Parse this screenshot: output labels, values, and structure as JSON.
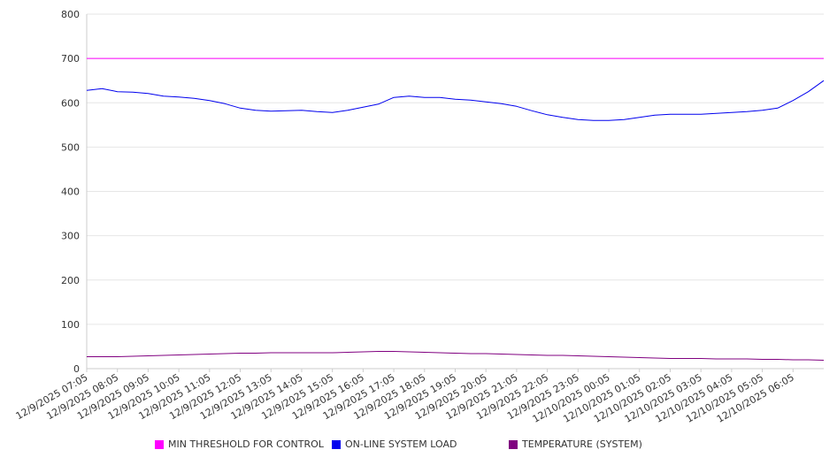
{
  "chart_data": {
    "type": "line",
    "ylim": [
      0,
      800
    ],
    "yticks": [
      0,
      100,
      200,
      300,
      400,
      500,
      600,
      700,
      800
    ],
    "grid": true,
    "legend_position": "bottom",
    "xticks": [
      "12/9/2025 07:05",
      "12/9/2025 08:05",
      "12/9/2025 09:05",
      "12/9/2025 10:05",
      "12/9/2025 11:05",
      "12/9/2025 12:05",
      "12/9/2025 13:05",
      "12/9/2025 14:05",
      "12/9/2025 15:05",
      "12/9/2025 16:05",
      "12/9/2025 17:05",
      "12/9/2025 18:05",
      "12/9/2025 19:05",
      "12/9/2025 20:05",
      "12/9/2025 21:05",
      "12/9/2025 22:05",
      "12/9/2025 23:05",
      "12/10/2025 00:05",
      "12/10/2025 01:05",
      "12/10/2025 02:05",
      "12/10/2025 03:05",
      "12/10/2025 04:05",
      "12/10/2025 05:05",
      "12/10/2025 06:05"
    ],
    "x": [
      "12/9/2025 07:05",
      "12/9/2025 07:35",
      "12/9/2025 08:05",
      "12/9/2025 08:35",
      "12/9/2025 09:05",
      "12/9/2025 09:35",
      "12/9/2025 10:05",
      "12/9/2025 10:35",
      "12/9/2025 11:05",
      "12/9/2025 11:35",
      "12/9/2025 12:05",
      "12/9/2025 12:35",
      "12/9/2025 13:05",
      "12/9/2025 13:35",
      "12/9/2025 14:05",
      "12/9/2025 14:35",
      "12/9/2025 15:05",
      "12/9/2025 15:35",
      "12/9/2025 16:05",
      "12/9/2025 16:35",
      "12/9/2025 17:05",
      "12/9/2025 17:35",
      "12/9/2025 18:05",
      "12/9/2025 18:35",
      "12/9/2025 19:05",
      "12/9/2025 19:35",
      "12/9/2025 20:05",
      "12/9/2025 20:35",
      "12/9/2025 21:05",
      "12/9/2025 21:35",
      "12/9/2025 22:05",
      "12/9/2025 22:35",
      "12/9/2025 23:05",
      "12/9/2025 23:35",
      "12/10/2025 00:05",
      "12/10/2025 00:35",
      "12/10/2025 01:05",
      "12/10/2025 01:35",
      "12/10/2025 02:05",
      "12/10/2025 02:35",
      "12/10/2025 03:05",
      "12/10/2025 03:35",
      "12/10/2025 04:05",
      "12/10/2025 04:35",
      "12/10/2025 05:05",
      "12/10/2025 05:35",
      "12/10/2025 06:05",
      "12/10/2025 06:35",
      "12/10/2025 07:05"
    ],
    "series": [
      {
        "name": "MIN THRESHOLD FOR CONTROL",
        "color": "#ff00ff",
        "values": [
          700,
          700,
          700,
          700,
          700,
          700,
          700,
          700,
          700,
          700,
          700,
          700,
          700,
          700,
          700,
          700,
          700,
          700,
          700,
          700,
          700,
          700,
          700,
          700,
          700,
          700,
          700,
          700,
          700,
          700,
          700,
          700,
          700,
          700,
          700,
          700,
          700,
          700,
          700,
          700,
          700,
          700,
          700,
          700,
          700,
          700,
          700,
          700,
          700
        ]
      },
      {
        "name": "ON-LINE SYSTEM LOAD",
        "color": "#0000ee",
        "values": [
          628,
          632,
          625,
          624,
          621,
          615,
          613,
          610,
          605,
          598,
          588,
          583,
          581,
          582,
          583,
          580,
          578,
          583,
          590,
          597,
          612,
          615,
          612,
          612,
          608,
          606,
          602,
          598,
          592,
          582,
          573,
          567,
          562,
          560,
          560,
          562,
          567,
          572,
          574,
          574,
          574,
          576,
          578,
          580,
          583,
          588,
          605,
          625,
          650
        ]
      },
      {
        "name": "TEMPERATURE (SYSTEM)",
        "color": "#800080",
        "values": [
          27,
          27,
          27,
          28,
          29,
          30,
          31,
          32,
          33,
          34,
          35,
          35,
          36,
          36,
          36,
          36,
          36,
          37,
          38,
          39,
          39,
          38,
          37,
          36,
          35,
          34,
          34,
          33,
          32,
          31,
          30,
          30,
          29,
          28,
          27,
          26,
          25,
          24,
          23,
          23,
          23,
          22,
          22,
          22,
          21,
          21,
          20,
          20,
          19
        ]
      }
    ]
  }
}
